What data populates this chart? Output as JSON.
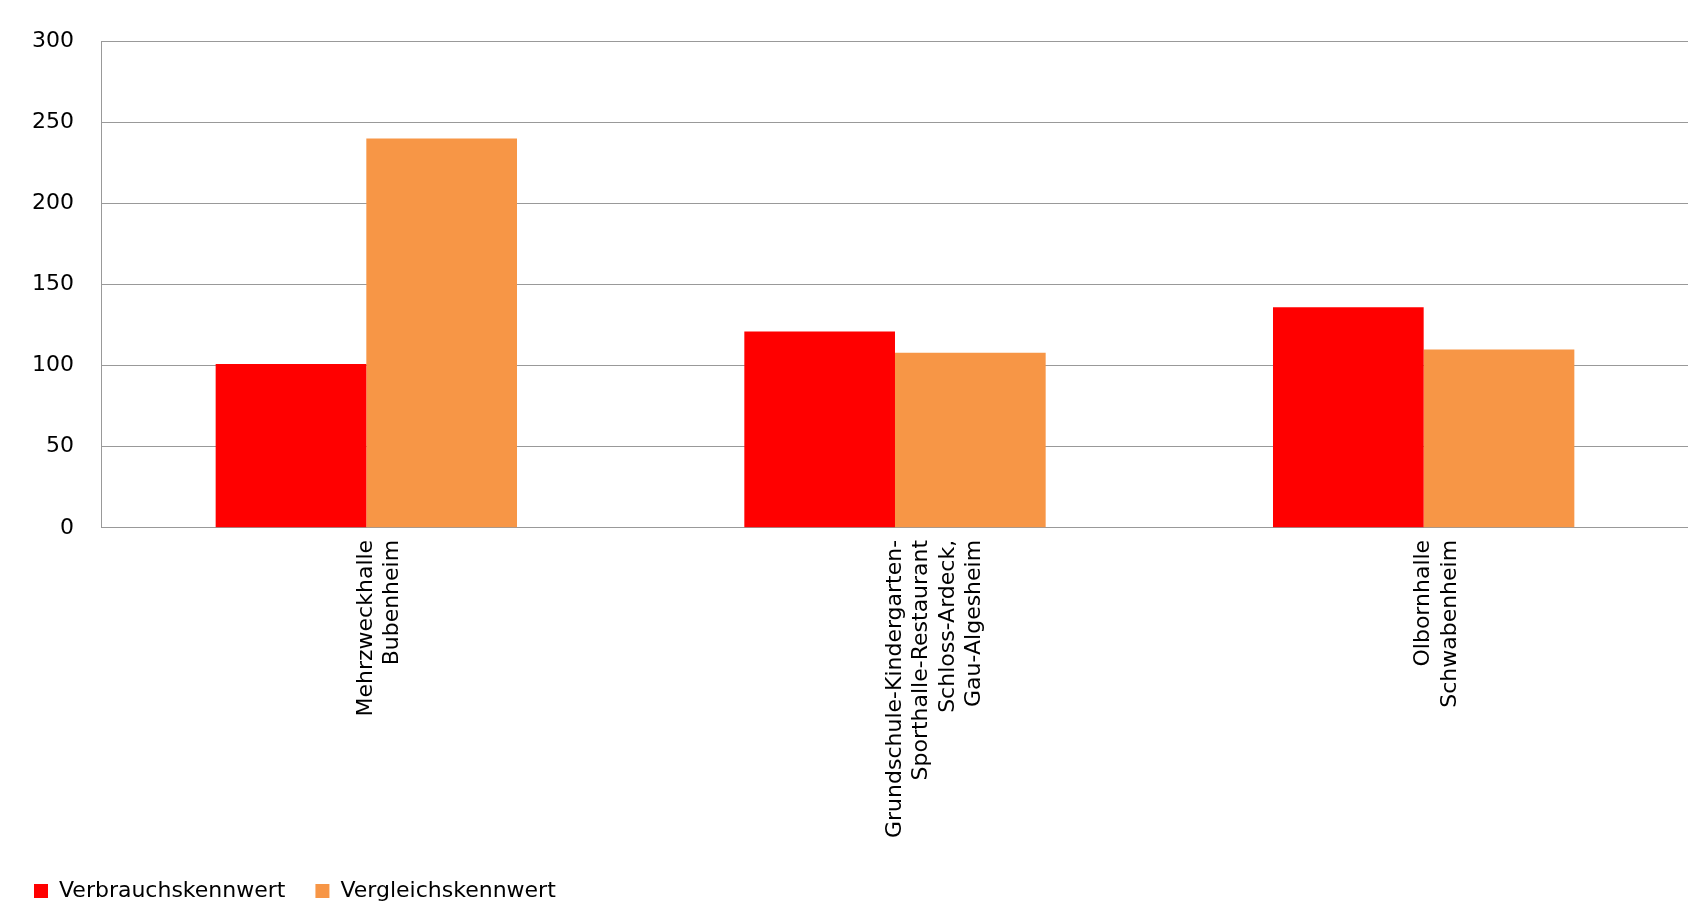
{
  "chart_data": {
    "type": "bar",
    "categories": [
      "Mehrzweckhalle Bubenheim",
      "Grundschule-Kindergarten-Sporthalle-Restaurant Schloss-Ardeck, Gau-Algesheim",
      "Olbornhalle Schwabenheim"
    ],
    "series": [
      {
        "name": "Verbrauchskennwert",
        "color": "#ff0000",
        "values": [
          101,
          121,
          136
        ]
      },
      {
        "name": "Vergleichskennwert",
        "color": "#f79646",
        "values": [
          240,
          108,
          110
        ]
      }
    ],
    "ylim": [
      0,
      300
    ],
    "yticks": [
      0,
      50,
      100,
      150,
      200,
      250,
      300
    ],
    "grid": "y",
    "legend": "bottom left"
  }
}
